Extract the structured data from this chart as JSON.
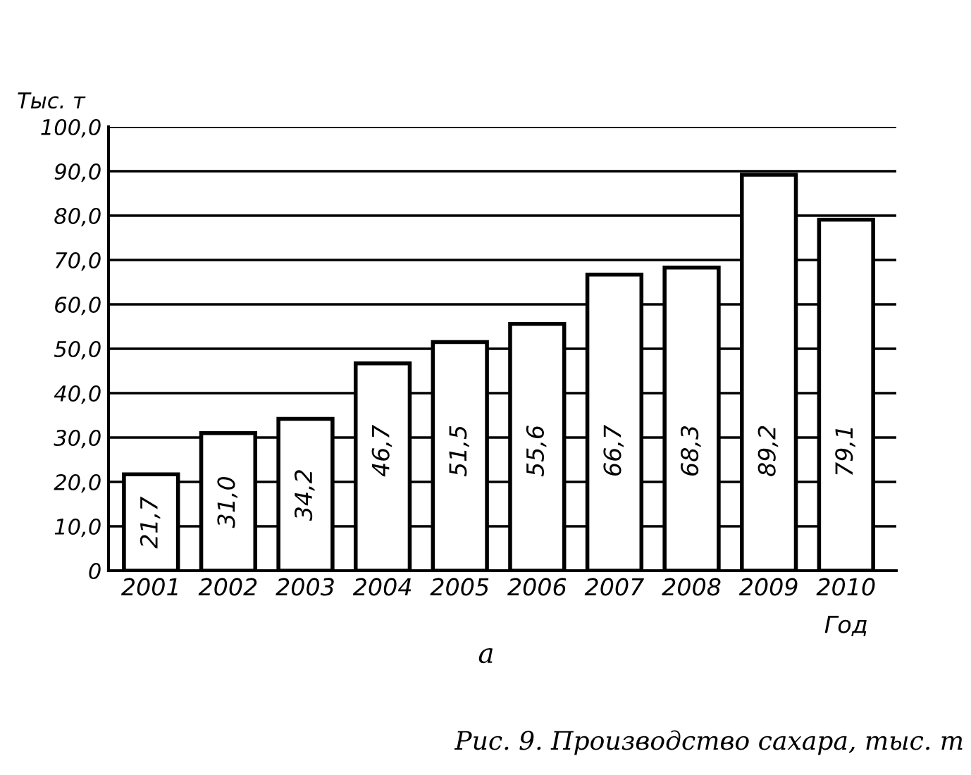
{
  "chart_data": {
    "type": "bar",
    "xlabel": "Год",
    "ylabel": "Тыс. т",
    "categories": [
      "2001",
      "2002",
      "2003",
      "2004",
      "2005",
      "2006",
      "2007",
      "2008",
      "2009",
      "2010"
    ],
    "values": [
      21.7,
      31.0,
      34.2,
      46.7,
      51.5,
      55.6,
      66.7,
      68.3,
      89.2,
      79.1
    ],
    "value_labels": [
      "21,7",
      "31,0",
      "34,2",
      "46,7",
      "51,5",
      "55,6",
      "66,7",
      "68,3",
      "89,2",
      "79,1"
    ],
    "color": "#ffffff",
    "ylim": [
      0,
      100
    ],
    "yticks": [
      {
        "value": 0,
        "label": "0"
      },
      {
        "value": 10,
        "label": "10,0"
      },
      {
        "value": 20,
        "label": "20,0"
      },
      {
        "value": 30,
        "label": "30,0"
      },
      {
        "value": 40,
        "label": "40,0"
      },
      {
        "value": 50,
        "label": "50,0"
      },
      {
        "value": 60,
        "label": "60,0"
      },
      {
        "value": 70,
        "label": "70,0"
      },
      {
        "value": 80,
        "label": "80,0"
      },
      {
        "value": 90,
        "label": "90,0"
      },
      {
        "value": 100,
        "label": "100,0"
      }
    ],
    "grid": "y",
    "annotations": [
      "а",
      "Рис. 9. Производство сахара, тыс. т"
    ]
  }
}
